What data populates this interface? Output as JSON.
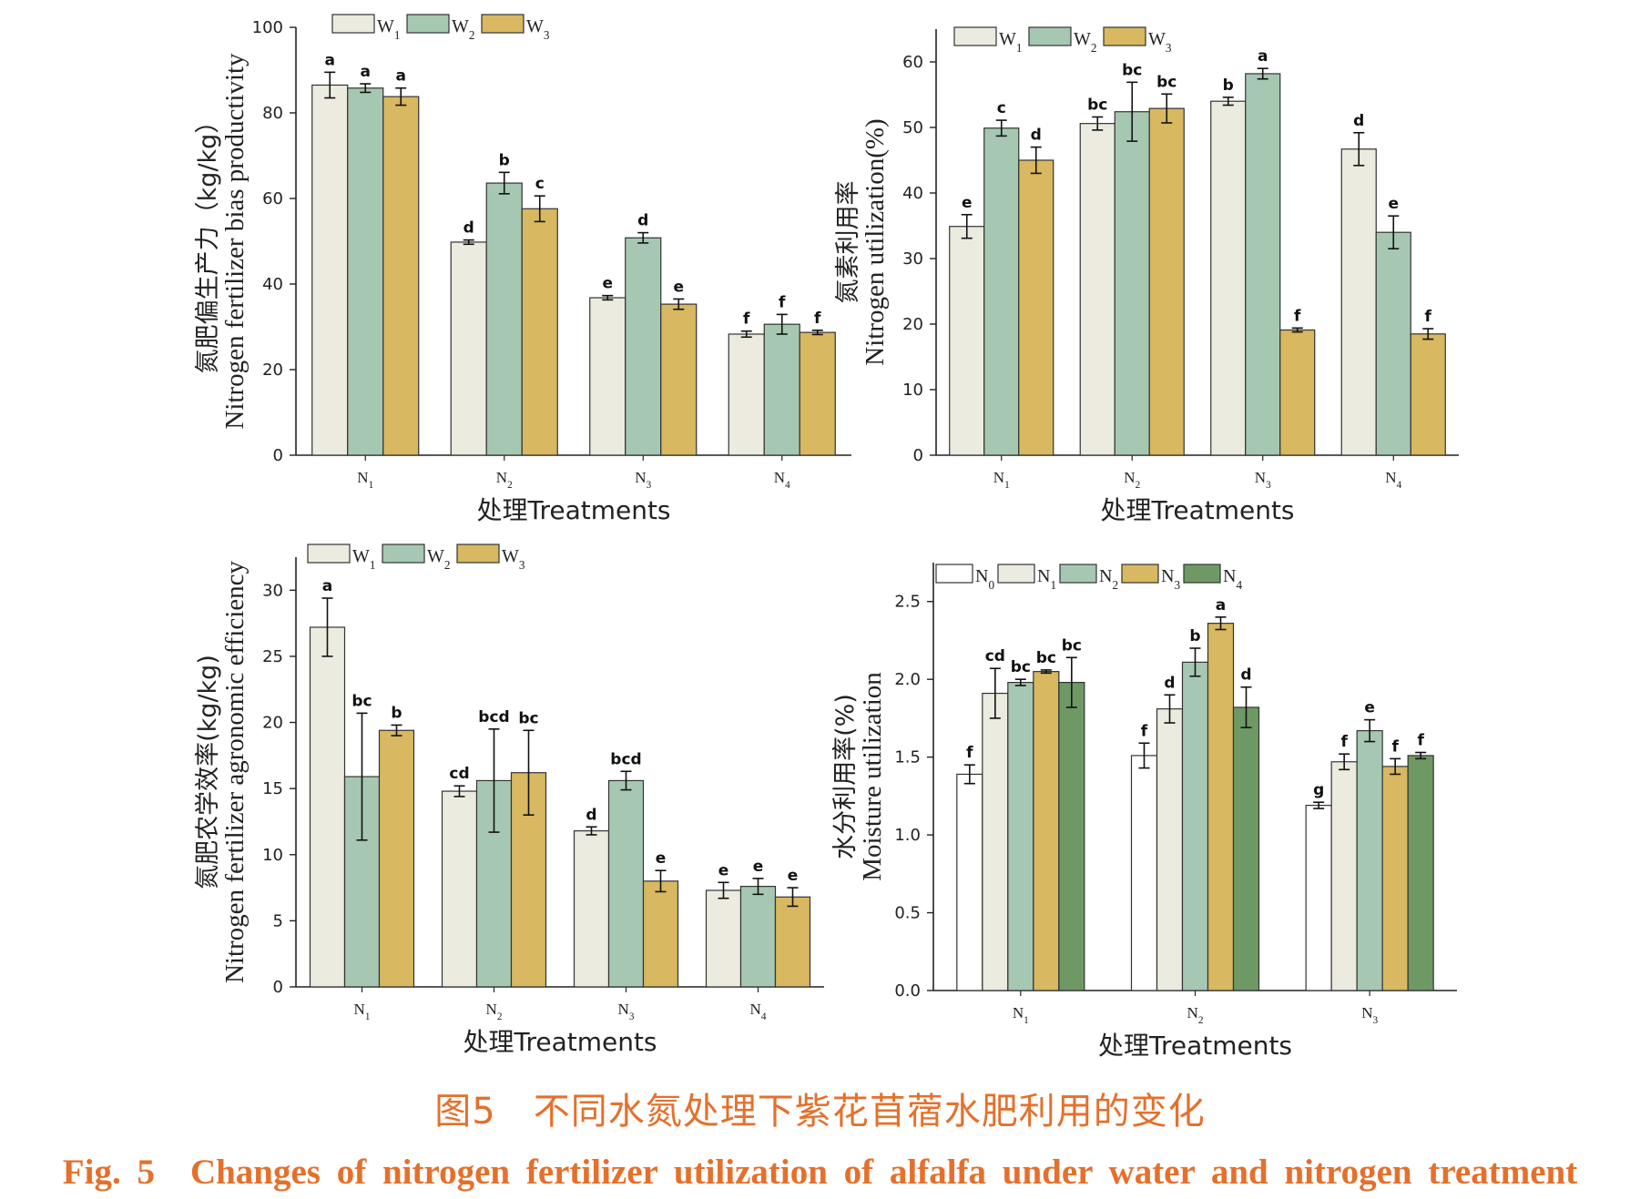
{
  "caption": {
    "zh": "图5　不同水氮处理下紫花苜蓿水肥利用的变化",
    "en": "Fig. 5　Changes of nitrogen fertilizer utilization of alfalfa under water and nitrogen treatment"
  },
  "colors": {
    "W1": "#ebebe0",
    "W2": "#a6c8b2",
    "W3": "#d8b860",
    "N0": "#ffffff",
    "N1": "#ebebe0",
    "N2": "#a6c8b2",
    "N3": "#d8b860",
    "N4": "#6f9964"
  },
  "chart_data": [
    {
      "type": "bar",
      "panel": "top-left",
      "ylabel_zh": "氮肥偏生产力（kg/kg）",
      "ylabel_en": "Nitrogen fertilizer bias productivity",
      "xlabel": "处理Treatments",
      "categories": [
        "N1",
        "N2",
        "N3",
        "N4"
      ],
      "ylim": [
        0,
        100
      ],
      "yticks": [
        0,
        20,
        40,
        60,
        80,
        100
      ],
      "legend": "top-left",
      "series": [
        {
          "name": "W1",
          "values": [
            86.5,
            49.8,
            36.8,
            28.3
          ],
          "errors": [
            3.0,
            0.5,
            0.5,
            0.7
          ],
          "letters": [
            "a",
            "d",
            "e",
            "f"
          ]
        },
        {
          "name": "W2",
          "values": [
            85.8,
            63.6,
            50.8,
            30.6
          ],
          "errors": [
            1.0,
            2.5,
            1.2,
            2.3
          ],
          "letters": [
            "a",
            "b",
            "d",
            "f"
          ]
        },
        {
          "name": "W3",
          "values": [
            83.8,
            57.6,
            35.3,
            28.7
          ],
          "errors": [
            2.0,
            3.0,
            1.2,
            0.5
          ],
          "letters": [
            "a",
            "c",
            "e",
            "f"
          ]
        }
      ]
    },
    {
      "type": "bar",
      "panel": "top-right",
      "ylabel_zh": "氮素利用率",
      "ylabel_en": "Nitrogen utilization(%)",
      "xlabel": "处理Treatments",
      "categories": [
        "N1",
        "N2",
        "N3",
        "N4"
      ],
      "ylim": [
        0,
        65
      ],
      "yticks": [
        0,
        10,
        20,
        30,
        40,
        50,
        60
      ],
      "legend": "top-left",
      "series": [
        {
          "name": "W1",
          "values": [
            34.9,
            50.6,
            54.0,
            46.7
          ],
          "errors": [
            1.8,
            1.0,
            0.6,
            2.5
          ],
          "letters": [
            "e",
            "bc",
            "b",
            "d"
          ]
        },
        {
          "name": "W2",
          "values": [
            49.9,
            52.4,
            58.2,
            34.0
          ],
          "errors": [
            1.2,
            4.5,
            0.8,
            2.5
          ],
          "letters": [
            "c",
            "bc",
            "a",
            "e"
          ]
        },
        {
          "name": "W3",
          "values": [
            45.0,
            52.9,
            19.1,
            18.5
          ],
          "errors": [
            2.0,
            2.2,
            0.3,
            0.8
          ],
          "letters": [
            "d",
            "bc",
            "f",
            "f"
          ]
        }
      ]
    },
    {
      "type": "bar",
      "panel": "bottom-left",
      "ylabel_zh": "氮肥农学效率(kg/kg)",
      "ylabel_en": "Nitrogen fertilizer agronomic efficiency",
      "xlabel": "处理Treatments",
      "categories": [
        "N1",
        "N2",
        "N3",
        "N4"
      ],
      "ylim": [
        0,
        32.5
      ],
      "yticks": [
        0,
        5,
        10,
        15,
        20,
        25,
        30
      ],
      "legend": "top-left",
      "series": [
        {
          "name": "W1",
          "values": [
            27.2,
            14.8,
            11.8,
            7.3
          ],
          "errors": [
            2.2,
            0.4,
            0.3,
            0.6
          ],
          "letters": [
            "a",
            "cd",
            "d",
            "e"
          ]
        },
        {
          "name": "W2",
          "values": [
            15.9,
            15.6,
            15.6,
            7.6
          ],
          "errors": [
            4.8,
            3.9,
            0.7,
            0.6
          ],
          "letters": [
            "bc",
            "bcd",
            "bcd",
            "e"
          ]
        },
        {
          "name": "W3",
          "values": [
            19.4,
            16.2,
            8.0,
            6.8
          ],
          "errors": [
            0.4,
            3.2,
            0.8,
            0.7
          ],
          "letters": [
            "b",
            "bc",
            "e",
            "e"
          ]
        }
      ]
    },
    {
      "type": "bar",
      "panel": "bottom-right",
      "ylabel_zh": "水分利用率(%)",
      "ylabel_en": "Moisture utilization",
      "xlabel": "处理Treatments",
      "categories": [
        "N1",
        "N2",
        "N3"
      ],
      "ylim": [
        0,
        2.75
      ],
      "yticks": [
        "0.0",
        "0.5",
        "1.0",
        "1.5",
        "2.0",
        "2.5"
      ],
      "legend": "top-left",
      "series": [
        {
          "name": "N0",
          "values": [
            1.39,
            1.51,
            1.19
          ],
          "errors": [
            0.06,
            0.08,
            0.02
          ],
          "letters": [
            "f",
            "f",
            "g"
          ]
        },
        {
          "name": "N1",
          "values": [
            1.91,
            1.81,
            1.47
          ],
          "errors": [
            0.16,
            0.09,
            0.05
          ],
          "letters": [
            "cd",
            "d",
            "f"
          ]
        },
        {
          "name": "N2",
          "values": [
            1.98,
            2.11,
            1.67
          ],
          "errors": [
            0.02,
            0.09,
            0.07
          ],
          "letters": [
            "bc",
            "b",
            "e"
          ]
        },
        {
          "name": "N3",
          "values": [
            2.05,
            2.36,
            1.44
          ],
          "errors": [
            0.01,
            0.04,
            0.05
          ],
          "letters": [
            "bc",
            "a",
            "f"
          ]
        },
        {
          "name": "N4",
          "values": [
            1.98,
            1.82,
            1.51
          ],
          "errors": [
            0.16,
            0.13,
            0.02
          ],
          "letters": [
            "bc",
            "d",
            "f"
          ]
        }
      ]
    }
  ]
}
